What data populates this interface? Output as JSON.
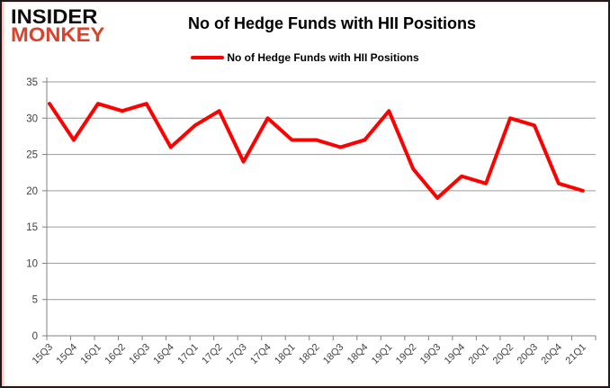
{
  "logo": {
    "line1": "INSIDER",
    "line2": "MONKEY",
    "line1_color": "#0d0d0d",
    "line2_color": "#d8432c"
  },
  "header": {
    "title": "No of Hedge Funds with HII Positions"
  },
  "legend": {
    "label": "No of Hedge Funds with HII Positions",
    "line_color": "#ff0000"
  },
  "chart_data": {
    "type": "line",
    "title": "No of Hedge Funds with HII Positions",
    "legend_position": "top",
    "grid": "horizontal",
    "categories": [
      "15Q3",
      "15Q4",
      "16Q1",
      "16Q2",
      "16Q3",
      "16Q4",
      "17Q1",
      "17Q2",
      "17Q3",
      "17Q4",
      "18Q1",
      "18Q2",
      "18Q3",
      "18Q4",
      "19Q1",
      "19Q2",
      "19Q3",
      "19Q4",
      "20Q1",
      "20Q2",
      "20Q3",
      "20Q4",
      "21Q1"
    ],
    "series": [
      {
        "name": "No of Hedge Funds with HII Positions",
        "color": "#ff0000",
        "values": [
          32,
          27,
          32,
          31,
          32,
          26,
          29,
          31,
          24,
          30,
          27,
          27,
          26,
          27,
          31,
          23,
          19,
          22,
          21,
          30,
          29,
          21,
          20
        ]
      }
    ],
    "xlabel": "",
    "ylabel": "",
    "ylim": [
      0,
      35
    ],
    "yticks": [
      0,
      5,
      10,
      15,
      20,
      25,
      30,
      35
    ],
    "gridline_color": "#9b9b9b",
    "axis_color": "#808080",
    "tick_label_color": "#3f3f3f"
  }
}
